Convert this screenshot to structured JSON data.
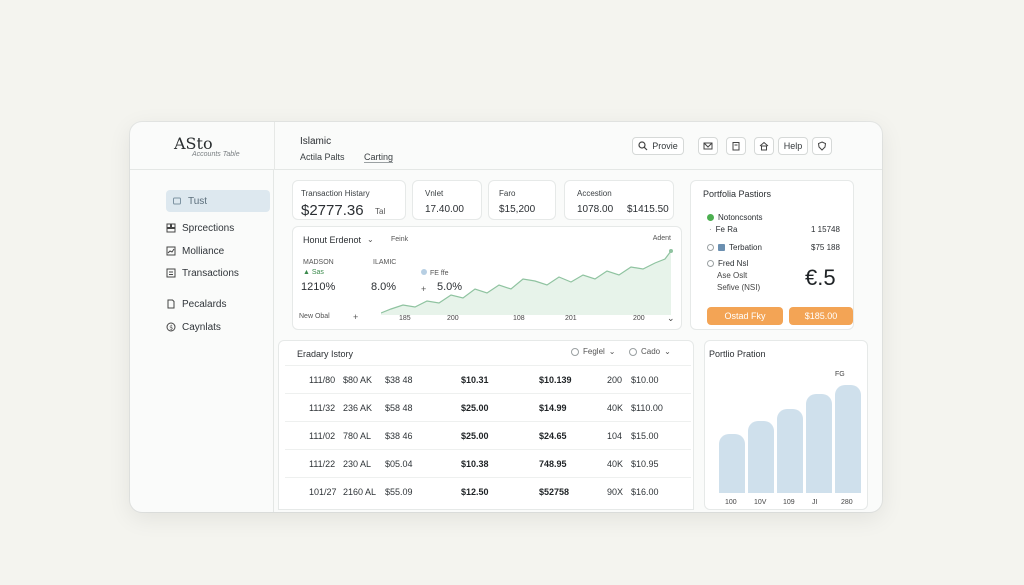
{
  "app": {
    "logo": "ASto",
    "logo_sub": "Accounts Table"
  },
  "header": {
    "title": "Islamic",
    "sub1": "Actila Palts",
    "sub2": "Carting",
    "buttons": {
      "provide": "Provie",
      "help": "Help"
    }
  },
  "sidebar": {
    "items": [
      {
        "label": "Tust",
        "icon": "home-icon"
      },
      {
        "label": "Sprcections",
        "icon": "grid-icon"
      },
      {
        "label": "Molliance",
        "icon": "chart-icon"
      },
      {
        "label": "Transactions",
        "icon": "transfer-icon"
      },
      {
        "label": "Pecalards",
        "icon": "file-icon"
      },
      {
        "label": "Caynlats",
        "icon": "coin-icon"
      }
    ]
  },
  "stats": [
    {
      "label": "Transaction Histary",
      "value": "$2777.36",
      "suffix": "Tal"
    },
    {
      "label": "Vnlet",
      "value": "17.40.00"
    },
    {
      "label": "Faro",
      "value": "$15,200"
    },
    {
      "label": "Accestion",
      "value1": "1078.00",
      "value2": "$1415.50"
    }
  ],
  "trend_chart": {
    "title": "Honut Erdenot",
    "dropdown": "⌄",
    "tag": "Feink",
    "adjust": "Adent",
    "left_label": "MADSON",
    "left_value": "1210%",
    "left_delta": "▲ Sas",
    "mid_label": "ILAMIC",
    "mid_value": "8.0%",
    "legend_label": "FE ffe",
    "right_value": "5.0%",
    "plus": "+",
    "foot_label": "New Obal",
    "foot_plus": "+",
    "x_ticks": [
      "185",
      "200",
      "108",
      "201",
      "200"
    ],
    "chevron": "⌄",
    "colors": {
      "line": "#8fc3a0",
      "fill": "#e7f3ea",
      "marker": "#b7cfe3"
    }
  },
  "portfolio_positions": {
    "title": "Portfolia Pastiors",
    "items": [
      {
        "label": "Notoncsonts",
        "value": "",
        "status": "green"
      },
      {
        "label": "Fe Ra",
        "value": "1 15748",
        "status": "none"
      },
      {
        "label": "Terbation",
        "value": "$75 188",
        "status": "radio"
      },
      {
        "label": "Fred Nsl",
        "value": "",
        "status": "radio"
      },
      {
        "label": "Ase Oslt",
        "value": "",
        "status": "none"
      },
      {
        "label": "Sefive (NSI)",
        "value": "",
        "status": "none"
      }
    ],
    "big_value": "€.5",
    "buttons": {
      "left": "Ostad Fky",
      "right": "$185.00"
    },
    "accent": "#f3a455"
  },
  "history_table": {
    "title": "Eradary Istory",
    "filters": [
      "Feglel",
      "Cado"
    ],
    "rows": [
      [
        "111/80",
        "$80 AK",
        "$38 48",
        "$10.31",
        "$10.139",
        "200",
        "$10.00"
      ],
      [
        "111/32",
        "236 AK",
        "$58 48",
        "$25.00",
        "$14.99",
        "40K",
        "$110.00"
      ],
      [
        "111/02",
        "780 AL",
        "$38 46",
        "$25.00",
        "$24.65",
        "104",
        "$15.00"
      ],
      [
        "111/22",
        "230 AL",
        "$05.04",
        "$10.38",
        "748.95",
        "40K",
        "$10.95"
      ],
      [
        "101/27",
        "2160 AL",
        "$55.09",
        "$12.50",
        "$52758",
        "90X",
        "$16.00"
      ]
    ]
  },
  "portfolio_ration": {
    "title": "Portlio Pration",
    "top_label": "FG",
    "bar_labels": [
      "100",
      "10V",
      "109",
      "JI",
      "280"
    ],
    "values": [
      0.55,
      0.67,
      0.78,
      0.92,
      1.0
    ],
    "bar_color": "#cfe0ec"
  }
}
